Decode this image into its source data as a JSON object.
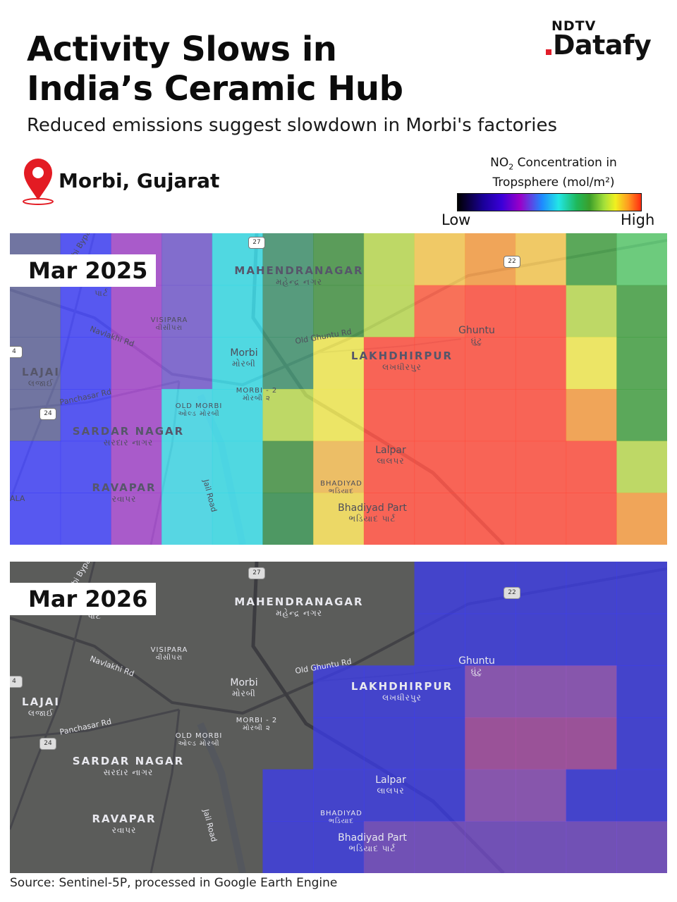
{
  "header": {
    "title_line1": "Activity Slows in",
    "title_line2": "India’s Ceramic Hub",
    "subtitle": "Reduced emissions suggest slowdown in Morbi's factories"
  },
  "brand": {
    "top": "NDTV",
    "bottom": "Datafy",
    "icon": "ndtv-datafy-logo",
    "accent": "#e11d2a"
  },
  "location": {
    "icon": "map-pin-icon",
    "label": "Morbi, Gujarat",
    "pin_color": "#e31b23"
  },
  "legend": {
    "title_prefix": "NO",
    "title_sub": "2",
    "title_rest": " Concentration in",
    "title_line2": "Tropsphere (mol/m²)",
    "low": "Low",
    "high": "High",
    "colormap": [
      "#000000",
      "#1a0099",
      "#3a00d8",
      "#9a00c8",
      "#1e8aff",
      "#22e6e6",
      "#1fb85a",
      "#a5e03a",
      "#f0f020",
      "#ff9a20",
      "#ff2a10"
    ]
  },
  "panels": [
    {
      "label": "Mar 2025"
    },
    {
      "label": "Mar 2026"
    }
  ],
  "map_labels": {
    "mahendranagar": "MAHENDRANAGAR",
    "mahendranagar_gu": "મહેન્દ્ર નગર",
    "visipara": "VISIPARA",
    "visipara_gu": "વીસીપરા",
    "part": "પાર્ટ",
    "morbi": "Morbi",
    "morbi_gu": "મોરબી",
    "lajai": "LAJAI",
    "lajai_gu": "લજાઈ",
    "morbi2": "MORBI - 2",
    "morbi2_gu": "મોરબી ૨",
    "oldmorbi": "OLD MORBI",
    "oldmorbi_gu": "ઓલ્ડ મોરબી",
    "sardarnagar": "SARDAR NAGAR",
    "sardarnagar_gu": "સરદાર નાગર",
    "ravapar": "RAVAPAR",
    "ravapar_gu": "રવાપર",
    "lakhdhirpur": "LAKHDHIRPUR",
    "lakhdhirpur_gu": "લખધીરપુર",
    "ghuntu": "Ghuntu",
    "ghuntu_gu": "ઘુંટુ",
    "lalpar": "Lalpar",
    "lalpar_gu": "લાલપર",
    "bhadiyad": "BHADIYAD",
    "bhadiyad_gu": "ભડિયાદ",
    "bhadiyadpart": "Bhadiyad Part",
    "bhadiyadpart_gu": "ભડિયાદ પાર્ટ",
    "navlakhi": "Navlakhi Rd",
    "panchasar": "Panchasar Rd",
    "oldghuntu": "Old Ghuntu Rd",
    "jail": "Jail Road",
    "bypass": "Morbi Bypass",
    "ala": "ALA",
    "nh27": "27",
    "nh22": "22",
    "nh24": "24",
    "nh4": "4"
  },
  "source": "Source: Sentinel-5P, processed in Google Earth Engine",
  "heatmap_2025": [
    [
      "#5a5f96",
      "#3b3cf6",
      "#9f3fc8",
      "#6f55cc",
      "#32d8e4",
      "#3b8d6a",
      "#3f8f3f",
      "#b8d84e",
      "#f5c64e",
      "#f59a3e",
      "#f5c64e",
      "#3f9e3f",
      "#56c86a"
    ],
    [
      "#5a5f96",
      "#3b3cf6",
      "#9f3fc8",
      "#6f55cc",
      "#32d8e4",
      "#3b8d6a",
      "#3f8f3f",
      "#b8d84e",
      "#ff5a3e",
      "#ff4a3a",
      "#ff4a3a",
      "#b8d84e",
      "#3f9e3f"
    ],
    [
      "#5a5f96",
      "#3b3cf6",
      "#9f3fc8",
      "#6f55cc",
      "#32d8e4",
      "#3b8d6a",
      "#f0e84e",
      "#ff4a3a",
      "#ff4a3a",
      "#ff4a3a",
      "#ff4a3a",
      "#f0e84e",
      "#3f9e3f"
    ],
    [
      "#5a5f96",
      "#3b3cf6",
      "#9f3fc8",
      "#3bd6e6",
      "#32d8e4",
      "#b8d84e",
      "#f0e84e",
      "#ff4a3a",
      "#ff4a3a",
      "#ff4a3a",
      "#ff4a3a",
      "#f59a3e",
      "#3f9e3f"
    ],
    [
      "#3b3cf6",
      "#3b3cf6",
      "#9f3fc8",
      "#3bd6e6",
      "#32d8e4",
      "#3f8f3f",
      "#f0b84e",
      "#ff4a3a",
      "#ff4a3a",
      "#ff4a3a",
      "#ff4a3a",
      "#ff4a3a",
      "#b8d84e"
    ],
    [
      "#3b3cf6",
      "#3b3cf6",
      "#9f3fc8",
      "#3bd6e6",
      "#32d8e4",
      "#2f8a4a",
      "#f0d84e",
      "#ff4a3a",
      "#ff4a3a",
      "#ff4a3a",
      "#ff4a3a",
      "#ff4a3a",
      "#f59a3e"
    ]
  ],
  "heatmap_2026": [
    [
      null,
      null,
      null,
      null,
      null,
      null,
      null,
      null,
      "#3b3cf6",
      "#3b3cf6",
      "#3b3cf6",
      "#3b3cf6",
      "#3b3cf6"
    ],
    [
      null,
      null,
      null,
      null,
      null,
      null,
      null,
      null,
      "#3b3cf6",
      "#3b3cf6",
      "#3b3cf6",
      "#3b3cf6",
      "#3b3cf6"
    ],
    [
      null,
      null,
      null,
      null,
      null,
      null,
      "#3b3cf6",
      "#3b3cf6",
      "#3b3cf6",
      "#9955cc",
      "#9955cc",
      "#9955cc",
      "#3b3cf6"
    ],
    [
      null,
      null,
      null,
      null,
      null,
      null,
      "#3b3cf6",
      "#3b3cf6",
      "#3b3cf6",
      "#b34fb0",
      "#b34fb0",
      "#b34fb0",
      "#3b3cf6"
    ],
    [
      null,
      null,
      null,
      null,
      null,
      "#3b3cf6",
      "#3b3cf6",
      "#3b3cf6",
      "#3b3cf6",
      "#9955cc",
      "#9955cc",
      "#3b3cf6",
      "#3b3cf6"
    ],
    [
      null,
      null,
      null,
      null,
      null,
      "#3b3cf6",
      "#3b3cf6",
      "#7a4ed8",
      "#7a4ed8",
      "#7a4ed8",
      "#7a4ed8",
      "#7a4ed8",
      "#7a4ed8"
    ]
  ]
}
